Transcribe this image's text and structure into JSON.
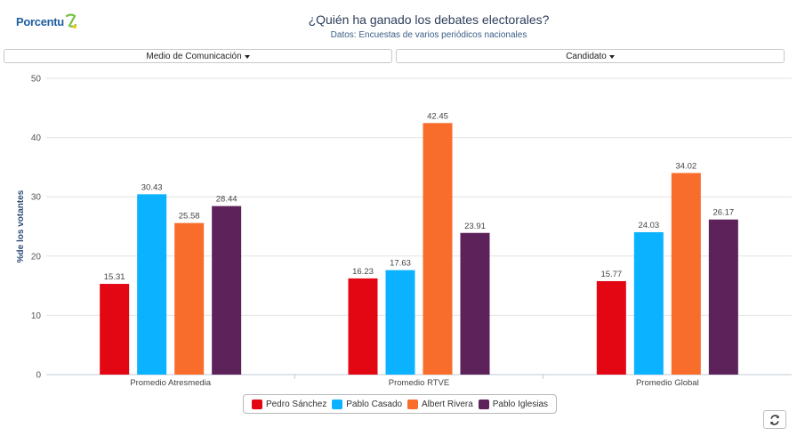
{
  "header": {
    "logo_text": "Porcentu",
    "title": "¿Quién ha ganado los debates electorales?",
    "subtitle": "Datos: Encuestas de varios periódicos nacionales"
  },
  "filters": {
    "media_label": "Medio de Comunicación",
    "candidate_label": "Candidato"
  },
  "chart_data": {
    "type": "bar",
    "title": "¿Quién ha ganado los debates electorales?",
    "subtitle": "Datos: Encuestas de varios periódicos nacionales",
    "xlabel": "",
    "ylabel": "%de los votantes",
    "ylim": [
      0,
      50
    ],
    "yticks": [
      0,
      10,
      20,
      30,
      40,
      50
    ],
    "categories": [
      "Promedio Atresmedia",
      "Promedio RTVE",
      "Promedio Global"
    ],
    "series": [
      {
        "name": "Pedro Sánchez",
        "color": "#e30613",
        "values": [
          15.31,
          16.23,
          15.77
        ]
      },
      {
        "name": "Pablo Casado",
        "color": "#0bb2ff",
        "values": [
          30.43,
          17.63,
          24.03
        ]
      },
      {
        "name": "Albert Rivera",
        "color": "#f96d2c",
        "values": [
          25.58,
          42.45,
          34.02
        ]
      },
      {
        "name": "Pablo Iglesias",
        "color": "#5c2259",
        "values": [
          28.44,
          23.91,
          26.17
        ]
      }
    ],
    "grid": true,
    "legend_position": "bottom-center"
  },
  "legend": {
    "items": [
      {
        "label": "Pedro Sánchez",
        "color": "#e30613"
      },
      {
        "label": "Pablo Casado",
        "color": "#0bb2ff"
      },
      {
        "label": "Albert Rivera",
        "color": "#f96d2c"
      },
      {
        "label": "Pablo Iglesias",
        "color": "#5c2259"
      }
    ]
  },
  "icons": {
    "refresh": "refresh-icon",
    "logo": "porcentu-logo-icon"
  }
}
